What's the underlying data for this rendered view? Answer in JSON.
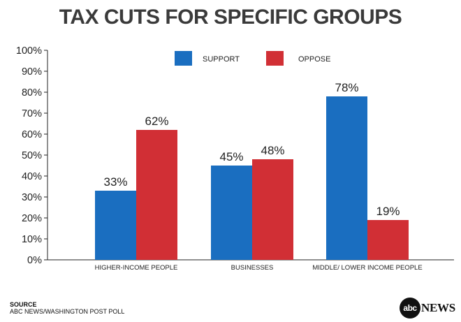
{
  "chart_data": {
    "type": "bar",
    "title": "TAX CUTS FOR SPECIFIC GROUPS",
    "categories": [
      "HIGHER-INCOME PEOPLE",
      "BUSINESSES",
      "MIDDLE/ LOWER INCOME PEOPLE"
    ],
    "series": [
      {
        "name": "SUPPORT",
        "color": "#1a6ec0",
        "values": [
          33,
          45,
          78
        ],
        "labels": [
          "33%",
          "45%",
          "78%"
        ]
      },
      {
        "name": "OPPOSE",
        "color": "#d12f35",
        "values": [
          62,
          48,
          19
        ],
        "labels": [
          "62%",
          "48%",
          "19%"
        ]
      }
    ],
    "ylim": [
      0,
      100
    ],
    "yticks": [
      "0%",
      "10%",
      "20%",
      "30%",
      "40%",
      "50%",
      "60%",
      "70%",
      "80%",
      "90%",
      "100%"
    ],
    "xlabel": "",
    "ylabel": "",
    "grid": false,
    "legend_position": "top-center"
  },
  "source": {
    "title": "SOURCE",
    "text": "ABC NEWS/WASHINGTON POST POLL"
  },
  "logo": {
    "circle_text": "abc",
    "wordmark": "NEWS"
  }
}
